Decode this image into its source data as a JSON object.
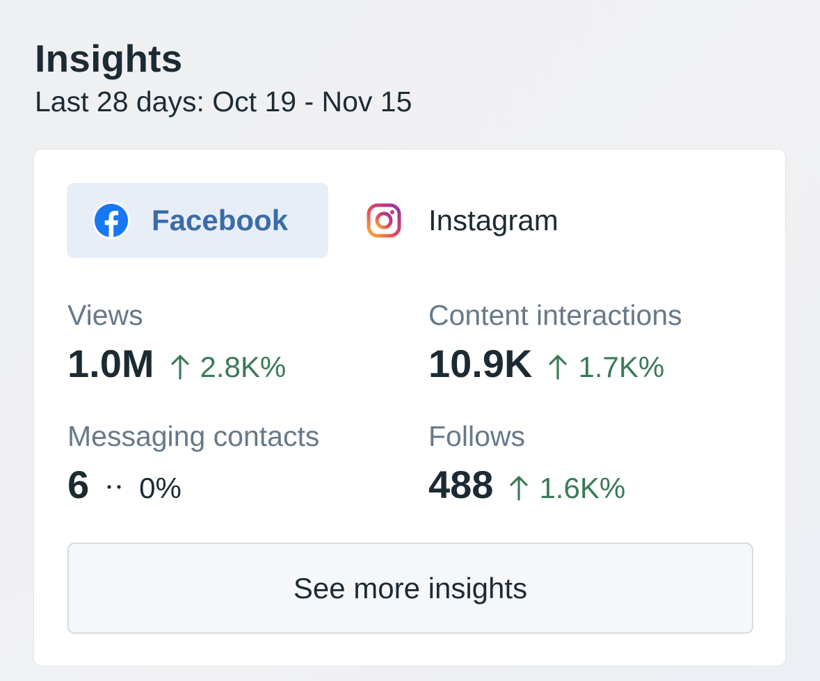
{
  "header": {
    "title": "Insights",
    "subtitle": "Last 28 days: Oct 19 - Nov 15"
  },
  "tabs": [
    {
      "label": "Facebook",
      "icon": "facebook-icon",
      "active": true
    },
    {
      "label": "Instagram",
      "icon": "instagram-icon",
      "active": false
    }
  ],
  "metrics": [
    {
      "label": "Views",
      "value": "1.0M",
      "change": "2.8K%",
      "trend": "up"
    },
    {
      "label": "Content interactions",
      "value": "10.9K",
      "change": "1.7K%",
      "trend": "up"
    },
    {
      "label": "Messaging contacts",
      "value": "6",
      "change": "0%",
      "trend": "neutral"
    },
    {
      "label": "Follows",
      "value": "488",
      "change": "1.6K%",
      "trend": "up"
    }
  ],
  "button": {
    "label": "See more insights"
  },
  "colors": {
    "facebook_blue": "#1877f2",
    "active_tab_bg": "#e8eef7",
    "active_tab_text": "#3a6ca8",
    "positive_change": "#3a7a57",
    "muted_label": "#67788a",
    "primary_text": "#1c2b33"
  }
}
